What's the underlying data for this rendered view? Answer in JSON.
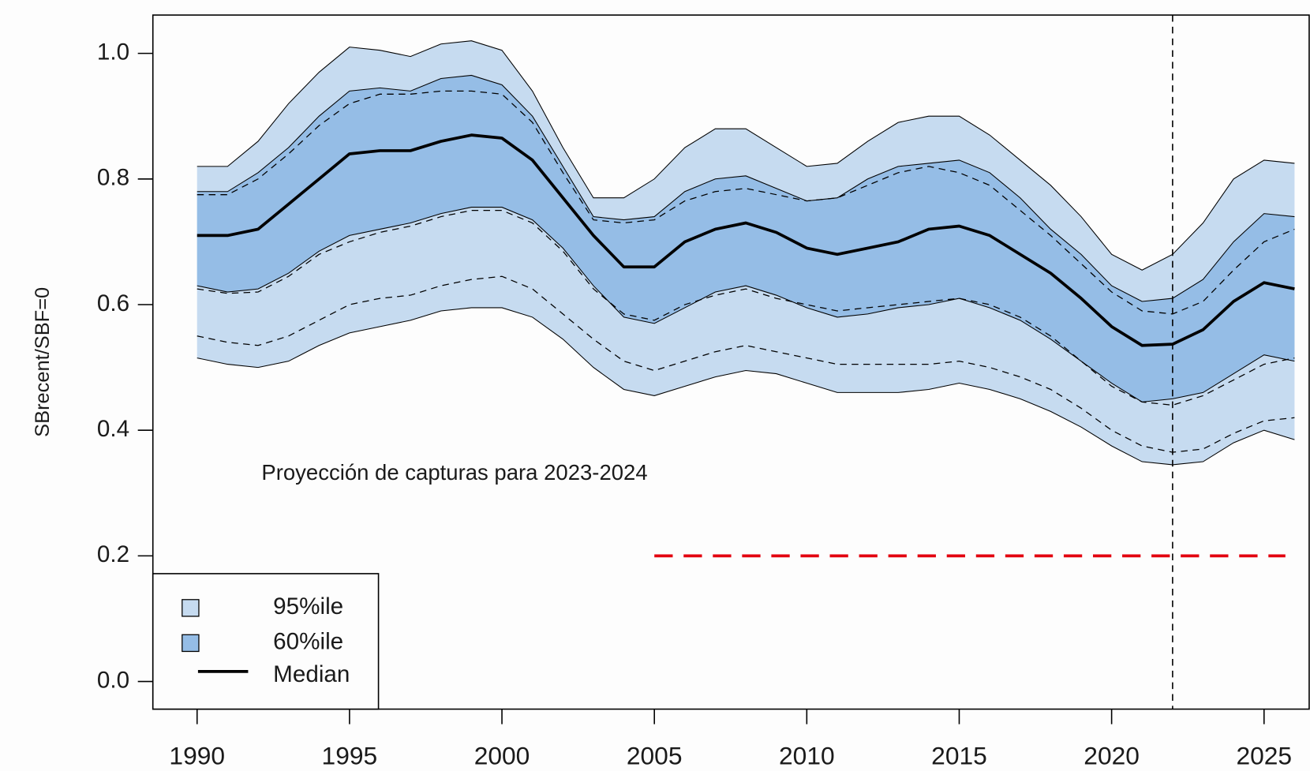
{
  "chart_data": {
    "type": "band",
    "y_label": "SBrecent/SBF=0",
    "annotation": "Proyección de capturas para 2023-2024",
    "x": [
      1990,
      1991,
      1992,
      1993,
      1994,
      1995,
      1996,
      1997,
      1998,
      1999,
      2000,
      2001,
      2002,
      2003,
      2004,
      2005,
      2006,
      2007,
      2008,
      2009,
      2010,
      2011,
      2012,
      2013,
      2014,
      2015,
      2016,
      2017,
      2018,
      2019,
      2020,
      2021,
      2022,
      2023,
      2024,
      2025,
      2026
    ],
    "bands": [
      {
        "name": "95%ile",
        "color": "#c6dbf0",
        "upper": [
          0.82,
          0.82,
          0.86,
          0.92,
          0.97,
          1.01,
          1.005,
          0.995,
          1.015,
          1.02,
          1.005,
          0.94,
          0.85,
          0.77,
          0.77,
          0.8,
          0.85,
          0.88,
          0.88,
          0.85,
          0.82,
          0.825,
          0.86,
          0.89,
          0.9,
          0.9,
          0.87,
          0.83,
          0.79,
          0.74,
          0.68,
          0.655,
          0.68,
          0.73,
          0.8,
          0.83,
          0.825
        ],
        "lower": [
          0.515,
          0.505,
          0.5,
          0.51,
          0.535,
          0.555,
          0.565,
          0.575,
          0.59,
          0.595,
          0.595,
          0.58,
          0.545,
          0.5,
          0.465,
          0.455,
          0.47,
          0.485,
          0.495,
          0.49,
          0.475,
          0.46,
          0.46,
          0.46,
          0.465,
          0.475,
          0.465,
          0.45,
          0.43,
          0.405,
          0.375,
          0.35,
          0.345,
          0.35,
          0.38,
          0.4,
          0.385
        ]
      },
      {
        "name": "60%ile",
        "color": "#95bde6",
        "upper": [
          0.78,
          0.78,
          0.81,
          0.85,
          0.9,
          0.94,
          0.945,
          0.94,
          0.96,
          0.965,
          0.95,
          0.9,
          0.82,
          0.74,
          0.735,
          0.74,
          0.78,
          0.8,
          0.805,
          0.785,
          0.765,
          0.77,
          0.8,
          0.82,
          0.825,
          0.83,
          0.81,
          0.77,
          0.72,
          0.68,
          0.63,
          0.605,
          0.61,
          0.64,
          0.7,
          0.745,
          0.74
        ],
        "lower": [
          0.63,
          0.62,
          0.625,
          0.65,
          0.685,
          0.71,
          0.72,
          0.73,
          0.745,
          0.755,
          0.755,
          0.735,
          0.69,
          0.63,
          0.58,
          0.57,
          0.595,
          0.62,
          0.63,
          0.615,
          0.595,
          0.58,
          0.585,
          0.595,
          0.6,
          0.61,
          0.595,
          0.575,
          0.545,
          0.51,
          0.475,
          0.445,
          0.45,
          0.46,
          0.49,
          0.52,
          0.51
        ]
      }
    ],
    "series": [
      {
        "name": "Median",
        "color": "#000000",
        "values": [
          0.71,
          0.71,
          0.72,
          0.76,
          0.8,
          0.84,
          0.845,
          0.845,
          0.86,
          0.87,
          0.865,
          0.83,
          0.77,
          0.71,
          0.66,
          0.66,
          0.7,
          0.72,
          0.73,
          0.715,
          0.69,
          0.68,
          0.69,
          0.7,
          0.72,
          0.725,
          0.71,
          0.68,
          0.65,
          0.61,
          0.565,
          0.535,
          0.537,
          0.56,
          0.605,
          0.635,
          0.625
        ]
      }
    ],
    "dashed_lines": [
      {
        "color": "#000000",
        "values": [
          0.775,
          0.775,
          0.8,
          0.84,
          0.885,
          0.92,
          0.935,
          0.935,
          0.94,
          0.94,
          0.935,
          0.89,
          0.81,
          0.735,
          0.73,
          0.735,
          0.765,
          0.78,
          0.785,
          0.775,
          0.765,
          0.77,
          0.79,
          0.81,
          0.82,
          0.81,
          0.79,
          0.75,
          0.71,
          0.665,
          0.62,
          0.59,
          0.585,
          0.605,
          0.655,
          0.7,
          0.72
        ]
      },
      {
        "color": "#000000",
        "values": [
          0.625,
          0.618,
          0.62,
          0.645,
          0.68,
          0.7,
          0.715,
          0.725,
          0.74,
          0.75,
          0.75,
          0.73,
          0.685,
          0.625,
          0.585,
          0.575,
          0.6,
          0.615,
          0.625,
          0.61,
          0.6,
          0.59,
          0.595,
          0.6,
          0.605,
          0.61,
          0.6,
          0.58,
          0.55,
          0.51,
          0.47,
          0.445,
          0.44,
          0.455,
          0.48,
          0.505,
          0.515
        ]
      },
      {
        "color": "#000000",
        "values": [
          0.55,
          0.54,
          0.535,
          0.55,
          0.575,
          0.6,
          0.61,
          0.615,
          0.63,
          0.64,
          0.645,
          0.625,
          0.585,
          0.545,
          0.51,
          0.495,
          0.51,
          0.525,
          0.535,
          0.525,
          0.515,
          0.505,
          0.505,
          0.505,
          0.505,
          0.51,
          0.5,
          0.485,
          0.465,
          0.435,
          0.4,
          0.375,
          0.365,
          0.37,
          0.395,
          0.415,
          0.42
        ]
      }
    ],
    "hline": {
      "value": 0.2,
      "x": [
        2005,
        2025.7
      ],
      "color": "#e3000f"
    },
    "vline": {
      "value": 2022,
      "color": "#000000"
    },
    "xlim": [
      1988.55,
      2026.48
    ],
    "ylim": [
      -0.044,
      1.061
    ],
    "xticks": [
      1990,
      1995,
      2000,
      2005,
      2010,
      2015,
      2020,
      2025
    ],
    "yticks": [
      {
        "value": 0,
        "label": "0.0"
      },
      0.2,
      0.4,
      0.6,
      0.8,
      {
        "value": 1,
        "label": "1.0"
      }
    ],
    "legend": "bottomleft"
  }
}
